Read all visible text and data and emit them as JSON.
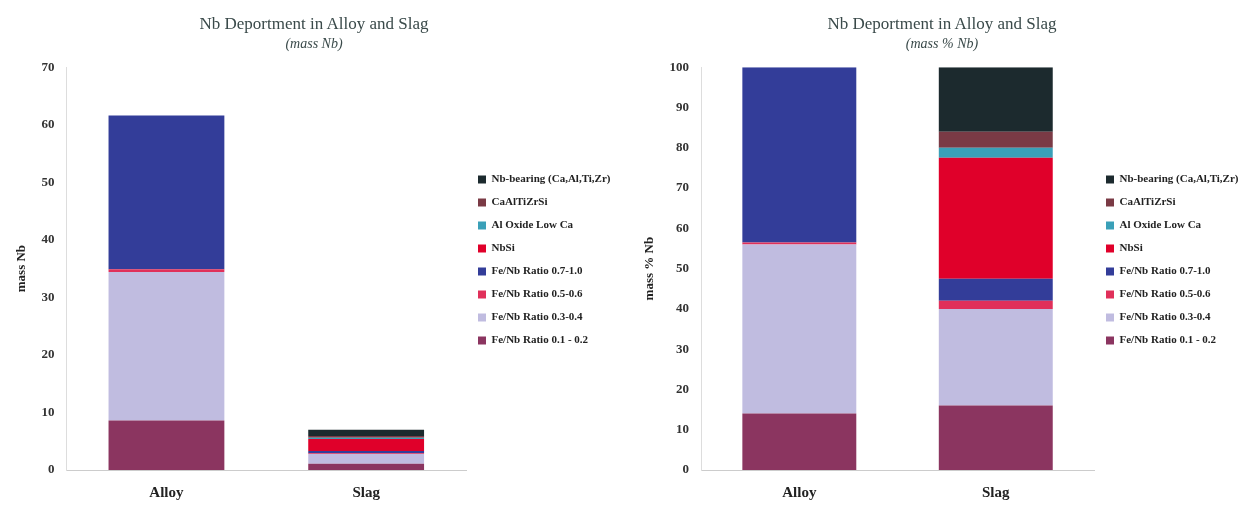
{
  "chart_data": [
    {
      "type": "bar",
      "title": "Nb Deportment in Alloy and Slag",
      "subtitle": "(mass Nb)",
      "ylabel": "mass Nb",
      "categories": [
        "Alloy",
        "Slag"
      ],
      "stacked": true,
      "ylim": [
        0,
        70
      ],
      "yticks": [
        0,
        10,
        20,
        30,
        40,
        50,
        60,
        70
      ],
      "legend": "right",
      "series": [
        {
          "name": "Fe/Nb Ratio 0.1 - 0.2",
          "color": "#8b3560",
          "values": [
            8.6,
            1.1
          ]
        },
        {
          "name": "Fe/Nb Ratio 0.3-0.4",
          "color": "#c0bce0",
          "values": [
            25.8,
            1.7
          ]
        },
        {
          "name": "Fe/Nb Ratio 0.5-0.6",
          "color": "#e0305a",
          "values": [
            0.5,
            0.1
          ]
        },
        {
          "name": "Fe/Nb Ratio 0.7-1.0",
          "color": "#333d99",
          "values": [
            26.7,
            0.4
          ]
        },
        {
          "name": "NbSi",
          "color": "#e0002a",
          "values": [
            0,
            2.1
          ]
        },
        {
          "name": "Al Oxide Low Ca",
          "color": "#3aa0b8",
          "values": [
            0,
            0.2
          ]
        },
        {
          "name": "CaAlTiZrSi",
          "color": "#7a3a45",
          "values": [
            0,
            0.3
          ]
        },
        {
          "name": "Nb-bearing (Ca,Al,Ti,Zr)",
          "color": "#1c2a2e",
          "values": [
            0,
            1.1
          ]
        }
      ]
    },
    {
      "type": "bar",
      "title": "Nb Deportment in Alloy and Slag",
      "subtitle": "(mass % Nb)",
      "ylabel": "mass % Nb",
      "categories": [
        "Alloy",
        "Slag"
      ],
      "stacked": true,
      "ylim": [
        0,
        100
      ],
      "yticks": [
        0,
        10,
        20,
        30,
        40,
        50,
        60,
        70,
        80,
        90,
        100
      ],
      "legend": "right",
      "series": [
        {
          "name": "Fe/Nb Ratio 0.1 - 0.2",
          "color": "#8b3560",
          "values": [
            14,
            16
          ]
        },
        {
          "name": "Fe/Nb Ratio 0.3-0.4",
          "color": "#c0bce0",
          "values": [
            42,
            24
          ]
        },
        {
          "name": "Fe/Nb Ratio 0.5-0.6",
          "color": "#e0305a",
          "values": [
            0.5,
            2
          ]
        },
        {
          "name": "Fe/Nb Ratio 0.7-1.0",
          "color": "#333d99",
          "values": [
            43.5,
            5.5
          ]
        },
        {
          "name": "NbSi",
          "color": "#e0002a",
          "values": [
            0,
            30
          ]
        },
        {
          "name": "Al Oxide Low Ca",
          "color": "#3aa0b8",
          "values": [
            0,
            2.5
          ]
        },
        {
          "name": "CaAlTiZrSi",
          "color": "#7a3a45",
          "values": [
            0,
            4
          ]
        },
        {
          "name": "Nb-bearing (Ca,Al,Ti,Zr)",
          "color": "#1c2a2e",
          "values": [
            0,
            16
          ]
        }
      ]
    }
  ]
}
